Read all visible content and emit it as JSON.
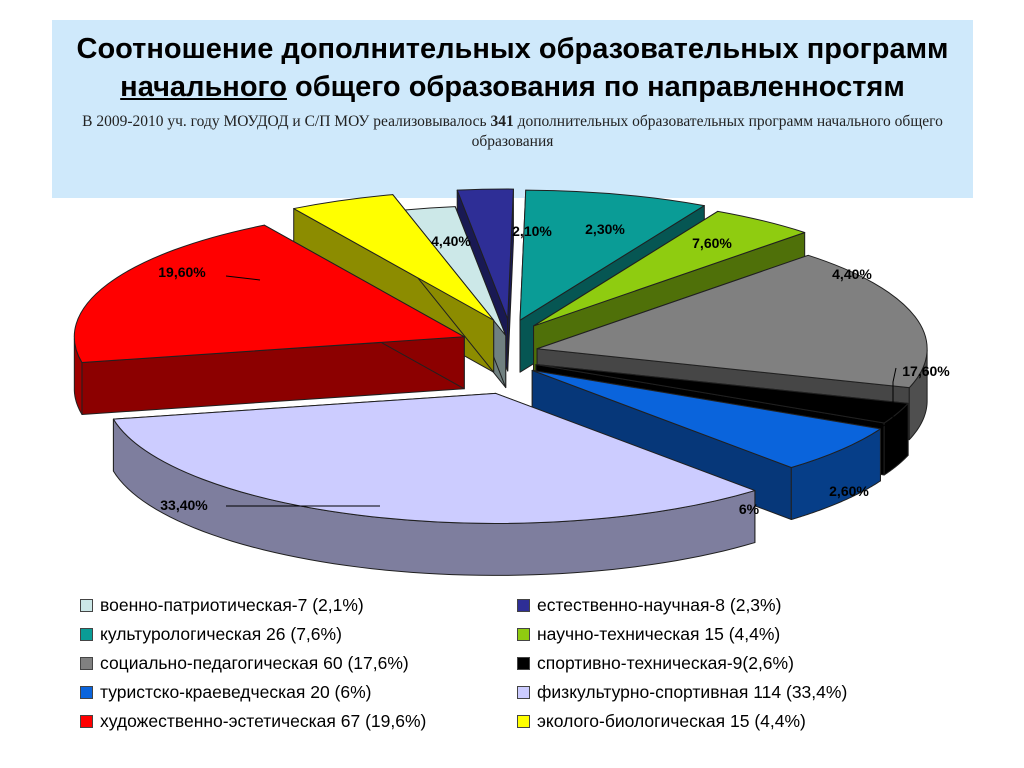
{
  "header": {
    "title_part1": "Соотношение дополнительных образовательных программ",
    "title_underlined": " начального",
    "title_part2": " общего образования по направленностям",
    "subtitle_part1": "В 2009-2010 уч. году МОУДОД и С/П МОУ реализовывалось ",
    "subtitle_bold": "341",
    "subtitle_part2": " дополнительных образовательных программ начального общего образования"
  },
  "chart_data": {
    "type": "pie",
    "total": 341,
    "slices": [
      {
        "category": "военно-патриотическая",
        "count": 7,
        "percent": 2.1,
        "label": "2,10%",
        "legend": "военно-патриотическая-7 (2,1%)",
        "color": "#cce8e8"
      },
      {
        "category": "естественно-научная",
        "count": 8,
        "percent": 2.3,
        "label": "2,30%",
        "legend": "естественно-научная-8 (2,3%)",
        "color": "#2e2e96"
      },
      {
        "category": "культурологическая",
        "count": 26,
        "percent": 7.6,
        "label": "7,60%",
        "legend": "культурологическая 26 (7,6%)",
        "color": "#0a9c96"
      },
      {
        "category": "научно-техническая",
        "count": 15,
        "percent": 4.4,
        "label": "4,40%",
        "legend": "научно-техническая 15 (4,4%)",
        "color": "#8fcc10"
      },
      {
        "category": "социально-педагогическая",
        "count": 60,
        "percent": 17.6,
        "label": "17,60%",
        "legend": "социально-педагогическая 60 (17,6%)",
        "color": "#808080"
      },
      {
        "category": "спортивно-техническая",
        "count": 9,
        "percent": 2.6,
        "label": "2,60%",
        "legend": "спортивно-техническая-9(2,6%)",
        "color": "#000000"
      },
      {
        "category": "туристско-краеведческая",
        "count": 20,
        "percent": 6,
        "label": "6%",
        "legend": "туристско-краеведческая 20 (6%)",
        "color": "#0a64dc"
      },
      {
        "category": "физкультурно-спортивная",
        "count": 114,
        "percent": 33.4,
        "label": "33,40%",
        "legend": "физкультурно-спортивная 114 (33,4%)",
        "color": "#ccccff"
      },
      {
        "category": "художественно-эстетическая",
        "count": 67,
        "percent": 19.6,
        "label": "19,60%",
        "legend": "художественно-эстетическая 67 (19,6%)",
        "color": "#ff0000"
      },
      {
        "category": "эколого-биологическая",
        "count": 15,
        "percent": 4.4,
        "label": "4,40%",
        "legend": "эколого-биологическая 15 (4,4%)",
        "color": "#ffff00"
      }
    ],
    "legend_placement": "bottom"
  }
}
